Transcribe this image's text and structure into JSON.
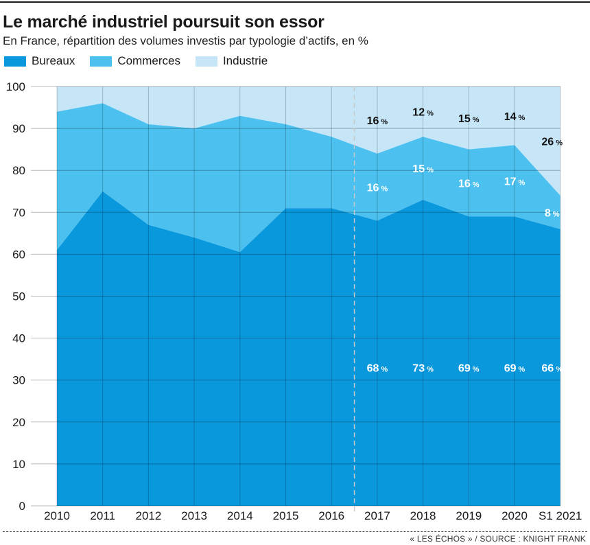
{
  "header": {
    "title": "Le marché industriel poursuit son essor",
    "subtitle": "En France, répartition des volumes investis par typologie d’actifs, en %"
  },
  "legend": [
    {
      "label": "Bureaux",
      "color": "#0a98dd"
    },
    {
      "label": "Commerces",
      "color": "#4cc1ef"
    },
    {
      "label": "Industrie",
      "color": "#c6e6f8"
    }
  ],
  "footer": {
    "source": "« LES ÉCHOS » / SOURCE : KNIGHT FRANK"
  },
  "chart_data": {
    "type": "area",
    "stacked": true,
    "categories": [
      "2010",
      "2011",
      "2012",
      "2013",
      "2014",
      "2015",
      "2016",
      "2017",
      "2018",
      "2019",
      "2020",
      "S1 2021"
    ],
    "series": [
      {
        "name": "Bureaux",
        "color": "#0a98dd",
        "values": [
          61,
          75,
          67,
          64,
          60.5,
          71,
          71,
          68,
          73,
          69,
          69,
          66
        ]
      },
      {
        "name": "Commerces",
        "color": "#4cc1ef",
        "values": [
          33,
          21,
          24,
          26,
          32.5,
          20,
          17,
          16,
          15,
          16,
          17,
          8
        ]
      },
      {
        "name": "Industrie",
        "color": "#c6e6f8",
        "values": [
          6,
          4,
          9,
          10,
          7,
          9,
          12,
          16,
          12,
          15,
          14,
          26
        ]
      }
    ],
    "ylim": [
      0,
      100
    ],
    "yticks": [
      0,
      10,
      20,
      30,
      40,
      50,
      60,
      70,
      80,
      90,
      100
    ],
    "grid": true,
    "divider_after": "2016",
    "annotations": [
      {
        "category": "2017",
        "series": "Bureaux",
        "value": "68",
        "unit": "%"
      },
      {
        "category": "2018",
        "series": "Bureaux",
        "value": "73",
        "unit": "%"
      },
      {
        "category": "2019",
        "series": "Bureaux",
        "value": "69",
        "unit": "%"
      },
      {
        "category": "2020",
        "series": "Bureaux",
        "value": "69",
        "unit": "%"
      },
      {
        "category": "S1 2021",
        "series": "Bureaux",
        "value": "66",
        "unit": "%"
      },
      {
        "category": "2017",
        "series": "Commerces",
        "value": "16",
        "unit": "%"
      },
      {
        "category": "2018",
        "series": "Commerces",
        "value": "15",
        "unit": "%"
      },
      {
        "category": "2019",
        "series": "Commerces",
        "value": "16",
        "unit": "%"
      },
      {
        "category": "2020",
        "series": "Commerces",
        "value": "17",
        "unit": "%"
      },
      {
        "category": "S1 2021",
        "series": "Commerces",
        "value": "8",
        "unit": "%"
      },
      {
        "category": "2017",
        "series": "Industrie",
        "value": "16",
        "unit": "%"
      },
      {
        "category": "2018",
        "series": "Industrie",
        "value": "12",
        "unit": "%"
      },
      {
        "category": "2019",
        "series": "Industrie",
        "value": "15",
        "unit": "%"
      },
      {
        "category": "2020",
        "series": "Industrie",
        "value": "14",
        "unit": "%"
      },
      {
        "category": "S1 2021",
        "series": "Industrie",
        "value": "26",
        "unit": "%"
      }
    ]
  }
}
